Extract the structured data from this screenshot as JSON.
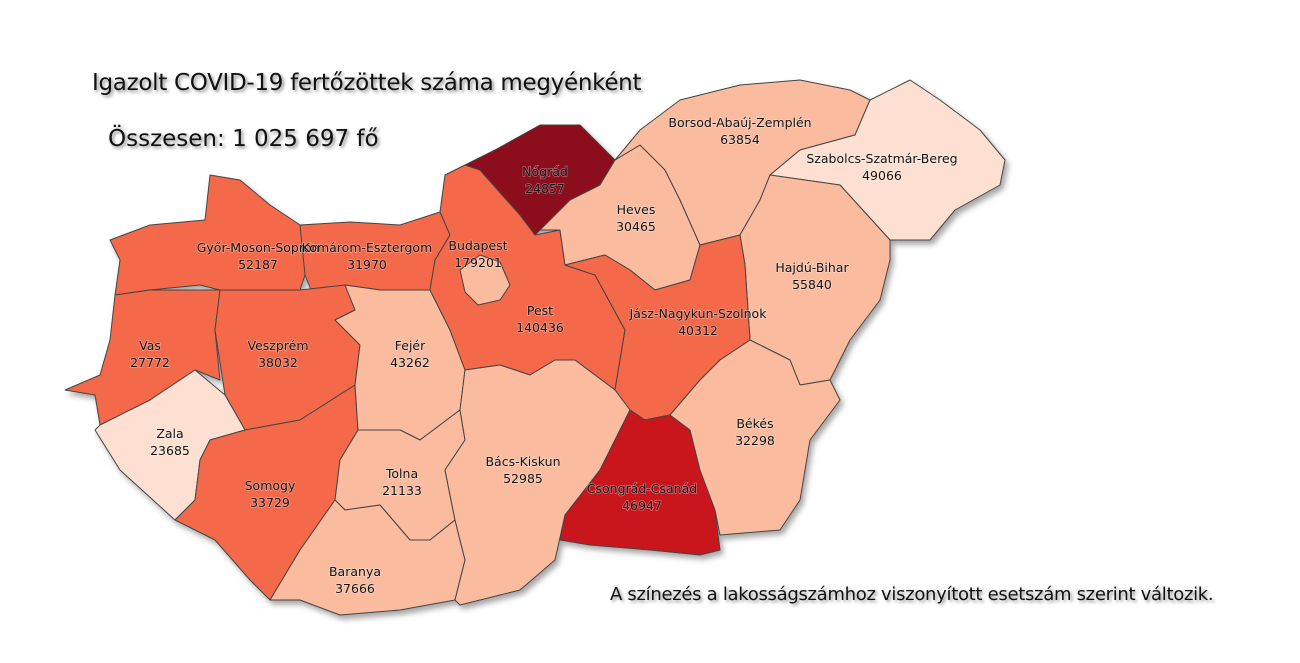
{
  "title": "Igazolt COVID-19 fertőzöttek száma megyénként",
  "total": "Összesen: 1 025 697 fő",
  "note": "A színezés a lakosságszámhoz viszonyított esetszám szerint változik.",
  "colors": {
    "darkest": "#8c0b1b",
    "dark": "#c8161f",
    "medium": "#f4694a",
    "light": "#fbbb9e",
    "lightest": "#fde0d2",
    "border": "#444444"
  },
  "counties": [
    {
      "name": "Győr-Moson-Sopron",
      "cases": "52187",
      "shade": "medium"
    },
    {
      "name": "Komárom-Esztergom",
      "cases": "31970",
      "shade": "medium"
    },
    {
      "name": "Vas",
      "cases": "27772",
      "shade": "medium"
    },
    {
      "name": "Veszprém",
      "cases": "38032",
      "shade": "medium"
    },
    {
      "name": "Zala",
      "cases": "23685",
      "shade": "lightest"
    },
    {
      "name": "Somogy",
      "cases": "33729",
      "shade": "medium"
    },
    {
      "name": "Fejér",
      "cases": "43262",
      "shade": "light"
    },
    {
      "name": "Tolna",
      "cases": "21133",
      "shade": "light"
    },
    {
      "name": "Baranya",
      "cases": "37666",
      "shade": "light"
    },
    {
      "name": "Pest",
      "cases": "140436",
      "shade": "medium"
    },
    {
      "name": "Budapest",
      "cases": "179201",
      "shade": "light"
    },
    {
      "name": "Nógrád",
      "cases": "24857",
      "shade": "darkest"
    },
    {
      "name": "Heves",
      "cases": "30465",
      "shade": "light"
    },
    {
      "name": "Borsod-Abaúj-Zemplén",
      "cases": "63854",
      "shade": "light"
    },
    {
      "name": "Szabolcs-Szatmár-Bereg",
      "cases": "49066",
      "shade": "lightest"
    },
    {
      "name": "Hajdú-Bihar",
      "cases": "55840",
      "shade": "light"
    },
    {
      "name": "Jász-Nagykun-Szolnok",
      "cases": "40312",
      "shade": "medium"
    },
    {
      "name": "Bács-Kiskun",
      "cases": "52985",
      "shade": "light"
    },
    {
      "name": "Csongrád-Csanád",
      "cases": "46947",
      "shade": "dark"
    },
    {
      "name": "Békés",
      "cases": "32298",
      "shade": "light"
    }
  ]
}
